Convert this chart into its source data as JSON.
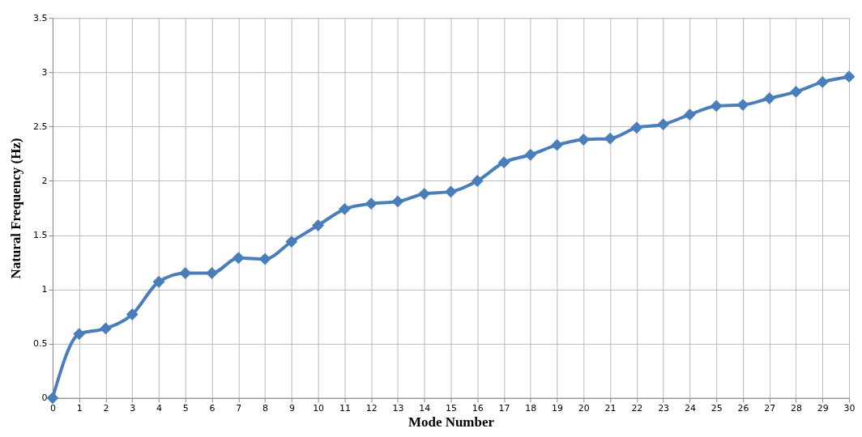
{
  "chart_data": {
    "type": "line",
    "xlabel": "Mode Number",
    "ylabel": "Natural Frequency (Hz)",
    "x": [
      0,
      1,
      2,
      3,
      4,
      5,
      6,
      7,
      8,
      9,
      10,
      11,
      12,
      13,
      14,
      15,
      16,
      17,
      18,
      19,
      20,
      21,
      22,
      23,
      24,
      25,
      26,
      27,
      28,
      29,
      30
    ],
    "series": [
      {
        "color": "#4a7ebb",
        "values": [
          0,
          0.59,
          0.64,
          0.77,
          1.07,
          1.15,
          1.15,
          1.29,
          1.28,
          1.44,
          1.59,
          1.74,
          1.79,
          1.81,
          1.88,
          1.9,
          2.0,
          2.17,
          2.24,
          2.33,
          2.38,
          2.39,
          2.49,
          2.52,
          2.61,
          2.69,
          2.7,
          2.76,
          2.82,
          2.91,
          2.96
        ]
      }
    ],
    "xlim": [
      0,
      30
    ],
    "xticks": [
      0,
      1,
      2,
      3,
      4,
      5,
      6,
      7,
      8,
      9,
      10,
      11,
      12,
      13,
      14,
      15,
      16,
      17,
      18,
      19,
      20,
      21,
      22,
      23,
      24,
      25,
      26,
      27,
      28,
      29,
      30
    ],
    "ylim": [
      0,
      3.5
    ],
    "yticks": [
      0,
      0.5,
      1,
      1.5,
      2,
      2.5,
      3,
      3.5
    ],
    "grid": true,
    "marker": "diamond",
    "line_style": "solid"
  }
}
